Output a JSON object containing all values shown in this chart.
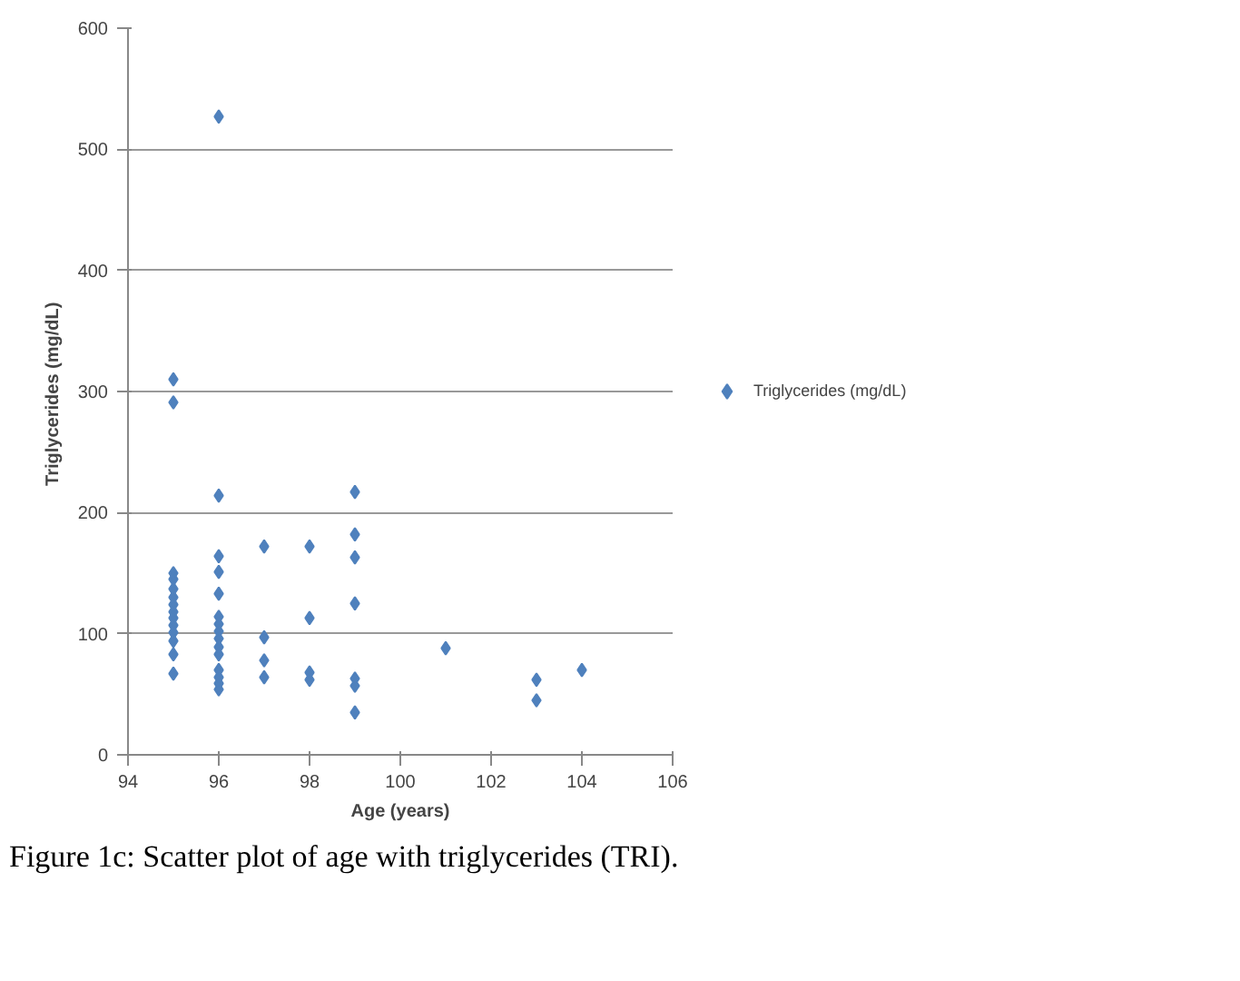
{
  "chart_data": {
    "type": "scatter",
    "xlabel": "Age (years)",
    "ylabel": "Triglycerides  (mg/dL)",
    "x": [
      95,
      95,
      95,
      95,
      95,
      95,
      95,
      95,
      95,
      95,
      95,
      95,
      95,
      95,
      96,
      96,
      96,
      96,
      96,
      96,
      96,
      96,
      96,
      96,
      96,
      96,
      96,
      96,
      96,
      97,
      97,
      97,
      97,
      98,
      98,
      98,
      98,
      99,
      99,
      99,
      99,
      99,
      99,
      99,
      101,
      103,
      103,
      104
    ],
    "series": [
      {
        "name": "Triglycerides (mg/dL)",
        "color": "#4f81bd",
        "values": [
          310,
          291,
          150,
          145,
          137,
          130,
          124,
          118,
          113,
          107,
          101,
          94,
          83,
          67,
          527,
          214,
          164,
          151,
          133,
          114,
          108,
          102,
          96,
          89,
          83,
          70,
          64,
          59,
          54,
          172,
          97,
          78,
          64,
          172,
          113,
          68,
          62,
          217,
          182,
          163,
          125,
          63,
          57,
          35,
          88,
          62,
          45,
          70
        ]
      }
    ],
    "xlim": [
      94,
      106
    ],
    "xticks": [
      94,
      96,
      98,
      100,
      102,
      104,
      106
    ],
    "ylim": [
      0,
      600
    ],
    "yticks": [
      0,
      100,
      200,
      300,
      400,
      500,
      600
    ],
    "grid": "y",
    "legend": "right",
    "marker": "diamond",
    "annotations": [
      "Figure 1c: Scatter plot of age with triglycerides (TRI)."
    ]
  }
}
